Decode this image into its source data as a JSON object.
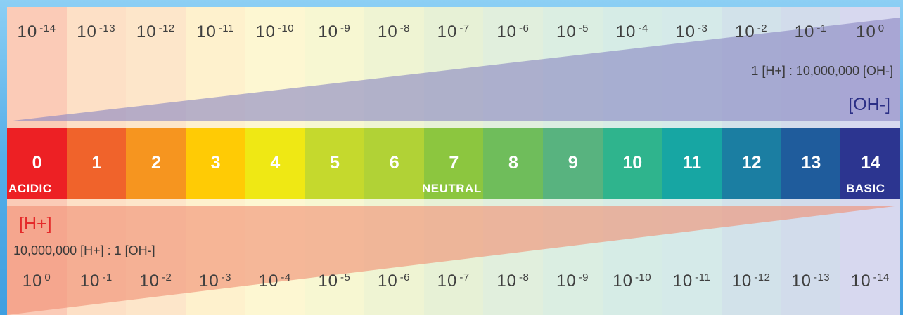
{
  "scale": {
    "levels": [
      "0",
      "1",
      "2",
      "3",
      "4",
      "5",
      "6",
      "7",
      "8",
      "9",
      "10",
      "11",
      "12",
      "13",
      "14"
    ],
    "colors": [
      "#ed2024",
      "#f0632b",
      "#f6951f",
      "#ffcb05",
      "#efe814",
      "#c5d92d",
      "#b1d236",
      "#8cc63f",
      "#6fbd5b",
      "#58b37f",
      "#2fb48d",
      "#17a6a3",
      "#1b7ea2",
      "#1f5c9c",
      "#2c3590"
    ],
    "tint_colors": [
      "#fbcbb7",
      "#fde0c6",
      "#fde6ca",
      "#fef1cd",
      "#fdf7d2",
      "#f7f7d2",
      "#eff4d3",
      "#e7f1d6",
      "#e1efdd",
      "#dbeee2",
      "#d6ece6",
      "#d5eae9",
      "#d2e2ea",
      "#d2dceb",
      "#d7d8ef"
    ]
  },
  "labels": {
    "acidic": "ACIDIC",
    "neutral": "NEUTRAL",
    "basic": "BASIC"
  },
  "oh": {
    "ion": "[OH-]",
    "ratio": "1 [H+] : 10,000,000 [OH-]",
    "exponents": [
      "-14",
      "-13",
      "-12",
      "-11",
      "-10",
      "-9",
      "-8",
      "-7",
      "-6",
      "-5",
      "-4",
      "-3",
      "-2",
      "-1",
      "0"
    ],
    "base": "10",
    "wedge_color": "#8b87c4"
  },
  "h": {
    "ion": "[H+]",
    "ratio": "10,000,000 [H+] : 1 [OH-]",
    "exponents": [
      "0",
      "-1",
      "-2",
      "-3",
      "-4",
      "-5",
      "-6",
      "-7",
      "-8",
      "-9",
      "-10",
      "-11",
      "-12",
      "-13",
      "-14"
    ],
    "base": "10",
    "wedge_color": "#f08f75"
  }
}
